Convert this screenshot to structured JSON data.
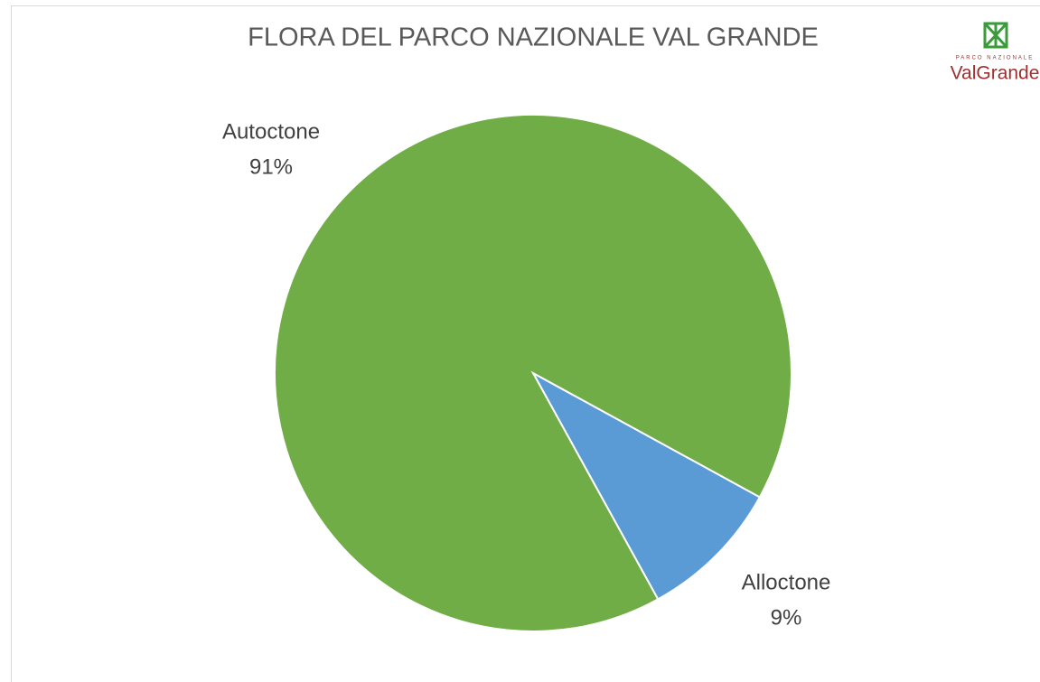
{
  "chart_data": {
    "type": "pie",
    "title": "FLORA DEL PARCO NAZIONALE VAL GRANDE",
    "categories": [
      "Alloctone",
      "Autoctone"
    ],
    "values": [
      9,
      91
    ],
    "value_labels": [
      "9%",
      "91%"
    ],
    "colors": [
      "#5b9bd5",
      "#70ad47"
    ]
  },
  "logo": {
    "subtitle": "PARCO NAZIONALE",
    "name": "ValGrande"
  }
}
